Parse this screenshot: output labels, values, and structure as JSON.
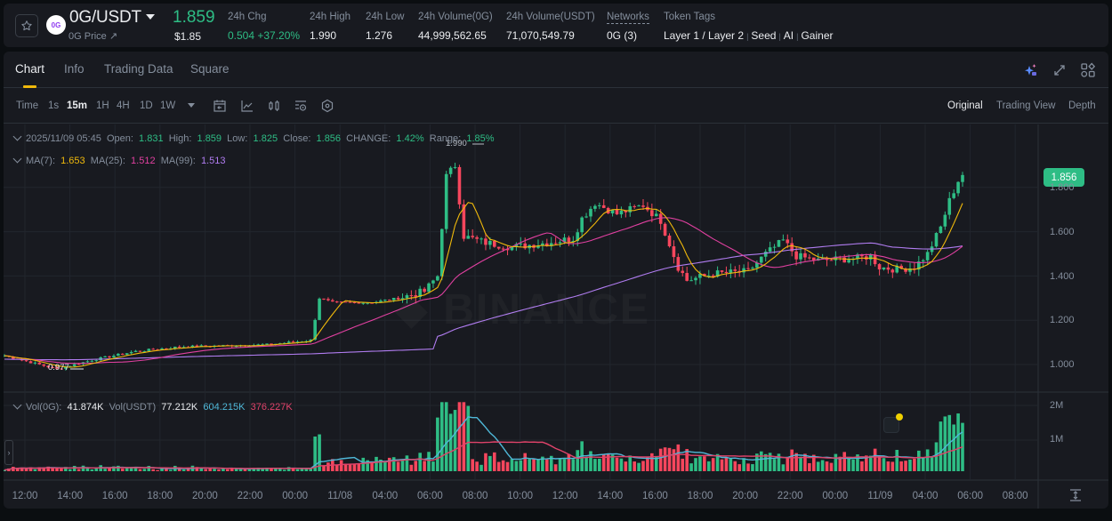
{
  "header": {
    "pair": "0G/USDT",
    "subtitle": "0G Price ↗",
    "logo_text": "0G",
    "last_price": "1.859",
    "usd_price": "$1.85",
    "stats": [
      {
        "label": "24h Chg",
        "value": "0.504 +37.20%",
        "color": "green"
      },
      {
        "label": "24h High",
        "value": "1.990"
      },
      {
        "label": "24h Low",
        "value": "1.276"
      },
      {
        "label": "24h Volume(0G)",
        "value": "44,999,562.65"
      },
      {
        "label": "24h Volume(USDT)",
        "value": "71,070,549.79"
      },
      {
        "label": "Networks",
        "value": "0G (3)"
      },
      {
        "label": "Token Tags",
        "value": ""
      }
    ],
    "token_tags": [
      "Layer 1 / Layer 2",
      "Seed",
      "AI",
      "Gainer"
    ]
  },
  "tabs": [
    "Chart",
    "Info",
    "Trading Data",
    "Square"
  ],
  "active_tab": "Chart",
  "toolbar": {
    "time_label": "Time",
    "intervals": [
      "1s",
      "15m",
      "1H",
      "4H",
      "1D",
      "1W"
    ],
    "active_interval": "15m",
    "tools": [
      "calendar-icon",
      "indicator-icon",
      "candle-type-icon",
      "chart-settings-icon",
      "hexagon-settings-icon"
    ],
    "views": [
      "Original",
      "Trading View",
      "Depth"
    ],
    "active_view": "Original"
  },
  "legend": {
    "ohlc": {
      "datetime": "2025/11/09 05:45",
      "open_label": "Open:",
      "open": "1.831",
      "high_label": "High:",
      "high": "1.859",
      "low_label": "Low:",
      "low": "1.825",
      "close_label": "Close:",
      "close": "1.856",
      "change_label": "CHANGE:",
      "change": "1.42%",
      "range_label": "Range:",
      "range": "1.85%"
    },
    "ma": {
      "ma7_label": "MA(7):",
      "ma7": "1.653",
      "ma25_label": "MA(25):",
      "ma25": "1.512",
      "ma99_label": "MA(99):",
      "ma99": "1.513"
    },
    "vol": {
      "vol_base_label": "Vol(0G):",
      "vol_base": "41.874K",
      "vol_quote_label": "Vol(USDT)",
      "vol_quote": "77.212K",
      "vol_ma1": "604.215K",
      "vol_ma2": "376.227K"
    }
  },
  "price_axis": {
    "current_price_tag": "1.856",
    "labels": [
      "1.800",
      "1.600",
      "1.400",
      "1.200",
      "1.000"
    ],
    "high_marker": "1.990",
    "low_marker": "0.977"
  },
  "volume_axis": {
    "labels": [
      "2M",
      "1M"
    ]
  },
  "time_axis": [
    "12:00",
    "14:00",
    "16:00",
    "18:00",
    "20:00",
    "22:00",
    "00:00",
    "11/08",
    "04:00",
    "06:00",
    "08:00",
    "10:00",
    "12:00",
    "14:00",
    "16:00",
    "18:00",
    "20:00",
    "22:00",
    "00:00",
    "11/09",
    "04:00",
    "06:00",
    "08:00"
  ],
  "colors": {
    "up": "#2ebd85",
    "down": "#f6465d",
    "ma7": "#f0b90b",
    "ma25": "#e040a0",
    "ma99": "#b07cf0",
    "vol_ma1": "#4fb8d8",
    "vol_ma2": "#e0436a",
    "accent": "#f0b90b"
  },
  "chart_data": {
    "type": "candlestick",
    "title": "0G/USDT 15m",
    "ylim": [
      0.9,
      2.0
    ],
    "closes_hint": "price path: ~1.03 at 11:00 on 11/07, low 0.977 ~13:30, slow rise to ~1.10 by 02:00 11/08, jump to ~1.30 at 02:30, ~1.9 peak at 08:00 (high 1.990), ~1.55 10:00-13:00, ~1.75 at 14:00-17:00, drop to ~1.40 at 19:00, ~1.47 at 23:00-04:00, rally to 1.856 at 05:45",
    "anchors": [
      [
        0,
        1.04
      ],
      [
        8,
        1.0
      ],
      [
        12,
        0.98
      ],
      [
        20,
        1.02
      ],
      [
        30,
        1.06
      ],
      [
        40,
        1.08
      ],
      [
        60,
        1.09
      ],
      [
        70,
        1.11
      ],
      [
        72,
        1.3
      ],
      [
        75,
        1.28
      ],
      [
        84,
        1.28
      ],
      [
        90,
        1.3
      ],
      [
        96,
        1.33
      ],
      [
        99,
        1.4
      ],
      [
        101,
        1.85
      ],
      [
        103,
        1.9
      ],
      [
        105,
        1.58
      ],
      [
        110,
        1.55
      ],
      [
        116,
        1.53
      ],
      [
        124,
        1.55
      ],
      [
        130,
        1.57
      ],
      [
        132,
        1.66
      ],
      [
        135,
        1.73
      ],
      [
        140,
        1.68
      ],
      [
        146,
        1.72
      ],
      [
        150,
        1.65
      ],
      [
        154,
        1.44
      ],
      [
        156,
        1.38
      ],
      [
        162,
        1.41
      ],
      [
        170,
        1.42
      ],
      [
        174,
        1.5
      ],
      [
        178,
        1.56
      ],
      [
        181,
        1.49
      ],
      [
        186,
        1.47
      ],
      [
        195,
        1.48
      ],
      [
        198,
        1.49
      ],
      [
        200,
        1.44
      ],
      [
        204,
        1.43
      ],
      [
        208,
        1.44
      ],
      [
        211,
        1.5
      ],
      [
        214,
        1.62
      ],
      [
        216,
        1.74
      ],
      [
        218,
        1.83
      ],
      [
        219,
        1.856
      ]
    ]
  }
}
